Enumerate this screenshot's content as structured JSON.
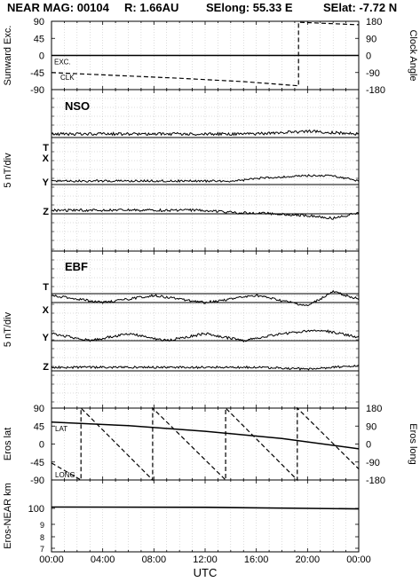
{
  "title": {
    "mission": "NEAR MAG: 00104",
    "distance": "R: 1.66AU",
    "selong": "SElong:    55.33 E",
    "selat": "SElat:   -7.72 N"
  },
  "chart_data": [
    {
      "type": "line",
      "panel": "sunward-clock",
      "ylabel": "Sunward Exc.",
      "ylabel_right": "Clock Angle",
      "ylim": [
        -90,
        90
      ],
      "ylim_right": [
        -180,
        180
      ],
      "yticks": [
        "90",
        "45",
        "0",
        "-45",
        "-90"
      ],
      "yticks_right": [
        "180",
        "90",
        "0",
        "-90",
        "-180"
      ],
      "annotations": [
        "EXC.",
        "CLK"
      ],
      "series": [
        {
          "name": "EXC.",
          "style": "solid",
          "x": [
            0,
            24
          ],
          "y": [
            0,
            0
          ]
        },
        {
          "name": "CLK",
          "style": "dashed",
          "axis": "right",
          "x": [
            0,
            5,
            10,
            15,
            19.3,
            19.3,
            24
          ],
          "y": [
            -90,
            -105,
            -120,
            -138,
            -160,
            175,
            162
          ]
        }
      ]
    },
    {
      "type": "line",
      "panel": "NSO",
      "label": "NSO",
      "ylabel": "5 nT/div",
      "traces": [
        {
          "name": "T",
          "x": [
            0,
            24
          ],
          "y": [
            0,
            0
          ]
        },
        {
          "name": "X",
          "x": [
            0,
            6,
            12,
            16,
            20,
            24
          ],
          "y": [
            0,
            0,
            0,
            0,
            1,
            0
          ]
        },
        {
          "name": "Y",
          "x": [
            0,
            8,
            14.5,
            16,
            20,
            22,
            24
          ],
          "y": [
            0,
            0,
            0,
            1,
            2,
            2,
            0
          ]
        },
        {
          "name": "Z",
          "x": [
            0,
            12,
            14.5,
            16,
            20,
            22,
            24
          ],
          "y": [
            0,
            0,
            -1,
            -1,
            -2,
            -3,
            -1
          ]
        }
      ]
    },
    {
      "type": "line",
      "panel": "EBF",
      "label": "EBF",
      "ylabel": "5 nT/div",
      "traces": [
        {
          "name": "T",
          "x": [
            0,
            24
          ],
          "y": [
            0,
            0
          ]
        },
        {
          "name": "X",
          "x": [
            0,
            4,
            8,
            12,
            16,
            20,
            22,
            24
          ],
          "y": [
            1,
            -1,
            1,
            -1,
            1,
            -2,
            2,
            0
          ]
        },
        {
          "name": "Y",
          "x": [
            0,
            3,
            6,
            9,
            12,
            15,
            18,
            21,
            24
          ],
          "y": [
            1,
            -1,
            1,
            -1,
            1,
            -1,
            1,
            2,
            0
          ]
        },
        {
          "name": "Z",
          "x": [
            0,
            12,
            16,
            20,
            24
          ],
          "y": [
            0,
            0,
            0,
            -1,
            1
          ]
        }
      ]
    },
    {
      "type": "line",
      "panel": "eros-position",
      "ylabel": "Eros lat",
      "ylabel_right": "Eros long",
      "ylim": [
        -90,
        90
      ],
      "ylim_right": [
        -180,
        180
      ],
      "yticks": [
        "90",
        "45",
        "0",
        "-45",
        "-90"
      ],
      "yticks_right": [
        "180",
        "90",
        "0",
        "-90",
        "-180"
      ],
      "annotations": [
        "LAT",
        "LONG"
      ],
      "series": [
        {
          "name": "LAT",
          "style": "solid",
          "x": [
            0,
            6,
            12,
            18,
            24
          ],
          "y": [
            55,
            46,
            32,
            14,
            -12
          ]
        },
        {
          "name": "LONG",
          "style": "dashed",
          "axis": "right",
          "x": [
            0,
            2.3,
            2.3,
            7.9,
            7.9,
            13.6,
            13.6,
            19.2,
            19.2,
            24
          ],
          "y": [
            -95,
            -180,
            180,
            -180,
            180,
            -180,
            180,
            -180,
            180,
            -125
          ]
        }
      ]
    },
    {
      "type": "line",
      "panel": "distance",
      "ylabel": "Eros-NEAR km",
      "yticks": [
        "100",
        "9",
        "8",
        "7"
      ],
      "series": [
        {
          "name": "",
          "style": "solid",
          "x": [
            0,
            12,
            24
          ],
          "y": [
            100.5,
            100.4,
            99.8
          ]
        }
      ]
    }
  ],
  "xaxis": {
    "xlabel": "UTC",
    "ticks": [
      "00:00",
      "04:00",
      "08:00",
      "12:00",
      "16:00",
      "20:00",
      "00:00"
    ],
    "range": [
      0,
      24
    ]
  }
}
